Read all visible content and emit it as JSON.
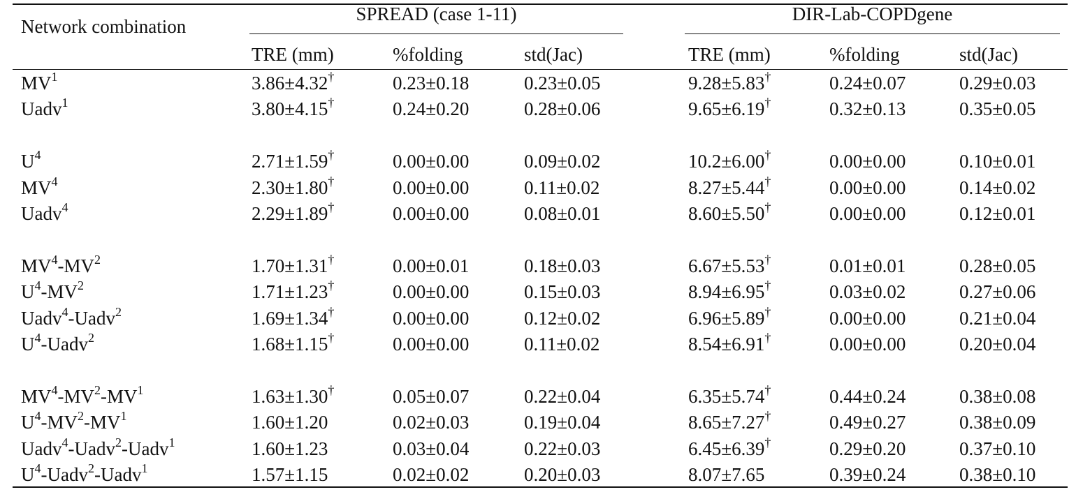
{
  "table": {
    "header": {
      "first": "Network combination",
      "groups": [
        "SPREAD (case 1-11)",
        "DIR-Lab-COPDgene"
      ],
      "columns": [
        "TRE (mm)",
        "%folding",
        "std(Jac)",
        "TRE (mm)",
        "%folding",
        "std(Jac)"
      ]
    },
    "groups": [
      [
        {
          "name": [
            "MV",
            "1"
          ],
          "cells": [
            [
              "3.86±4.32",
              "†"
            ],
            [
              "0.23±0.18"
            ],
            [
              "0.23±0.05"
            ],
            [
              "9.28±5.83",
              "†"
            ],
            [
              "0.24±0.07"
            ],
            [
              "0.29±0.03"
            ]
          ]
        },
        {
          "name": [
            "Uadv",
            "1"
          ],
          "cells": [
            [
              "3.80±4.15",
              "†"
            ],
            [
              "0.24±0.20"
            ],
            [
              "0.28±0.06"
            ],
            [
              "9.65±6.19",
              "†"
            ],
            [
              "0.32±0.13"
            ],
            [
              "0.35±0.05"
            ]
          ]
        }
      ],
      [
        {
          "name": [
            "U",
            "4"
          ],
          "cells": [
            [
              "2.71±1.59",
              "†"
            ],
            [
              "0.00±0.00"
            ],
            [
              "0.09±0.02"
            ],
            [
              "10.2±6.00",
              "†"
            ],
            [
              "0.00±0.00"
            ],
            [
              "0.10±0.01"
            ]
          ]
        },
        {
          "name": [
            "MV",
            "4"
          ],
          "cells": [
            [
              "2.30±1.80",
              "†"
            ],
            [
              "0.00±0.00"
            ],
            [
              "0.11±0.02"
            ],
            [
              "8.27±5.44",
              "†"
            ],
            [
              "0.00±0.00"
            ],
            [
              "0.14±0.02"
            ]
          ]
        },
        {
          "name": [
            "Uadv",
            "4"
          ],
          "cells": [
            [
              "2.29±1.89",
              "†"
            ],
            [
              "0.00±0.00"
            ],
            [
              "0.08±0.01"
            ],
            [
              "8.60±5.50",
              "†"
            ],
            [
              "0.00±0.00"
            ],
            [
              "0.12±0.01"
            ]
          ]
        }
      ],
      [
        {
          "name": [
            "MV",
            "4",
            "-MV",
            "2"
          ],
          "cells": [
            [
              "1.70±1.31",
              "†"
            ],
            [
              "0.00±0.01"
            ],
            [
              "0.18±0.03"
            ],
            [
              "6.67±5.53",
              "†"
            ],
            [
              "0.01±0.01"
            ],
            [
              "0.28±0.05"
            ]
          ]
        },
        {
          "name": [
            "U",
            "4",
            "-MV",
            "2"
          ],
          "cells": [
            [
              "1.71±1.23",
              "†"
            ],
            [
              "0.00±0.00"
            ],
            [
              "0.15±0.03"
            ],
            [
              "8.94±6.95",
              "†"
            ],
            [
              "0.03±0.02"
            ],
            [
              "0.27±0.06"
            ]
          ]
        },
        {
          "name": [
            "Uadv",
            "4",
            "-Uadv",
            "2"
          ],
          "cells": [
            [
              "1.69±1.34",
              "†"
            ],
            [
              "0.00±0.00"
            ],
            [
              "0.12±0.02"
            ],
            [
              "6.96±5.89",
              "†"
            ],
            [
              "0.00±0.00"
            ],
            [
              "0.21±0.04"
            ]
          ]
        },
        {
          "name": [
            "U",
            "4",
            "-Uadv",
            "2"
          ],
          "cells": [
            [
              "1.68±1.15",
              "†"
            ],
            [
              "0.00±0.00"
            ],
            [
              "0.11±0.02"
            ],
            [
              "8.54±6.91",
              "†"
            ],
            [
              "0.00±0.00"
            ],
            [
              "0.20±0.04"
            ]
          ]
        }
      ],
      [
        {
          "name": [
            "MV",
            "4",
            "-MV",
            "2",
            "-MV",
            "1"
          ],
          "cells": [
            [
              "1.63±1.30",
              "†"
            ],
            [
              "0.05±0.07"
            ],
            [
              "0.22±0.04"
            ],
            [
              "6.35±5.74",
              "†"
            ],
            [
              "0.44±0.24"
            ],
            [
              "0.38±0.08"
            ]
          ]
        },
        {
          "name": [
            "U",
            "4",
            "-MV",
            "2",
            "-MV",
            "1"
          ],
          "cells": [
            [
              "1.60±1.20"
            ],
            [
              "0.02±0.03"
            ],
            [
              "0.19±0.04"
            ],
            [
              "8.65±7.27",
              "†"
            ],
            [
              "0.49±0.27"
            ],
            [
              "0.38±0.09"
            ]
          ]
        },
        {
          "name": [
            "Uadv",
            "4",
            "-Uadv",
            "2",
            "-Uadv",
            "1"
          ],
          "cells": [
            [
              "1.60±1.23"
            ],
            [
              "0.03±0.04"
            ],
            [
              "0.22±0.03"
            ],
            [
              "6.45±6.39",
              "†"
            ],
            [
              "0.29±0.20"
            ],
            [
              "0.37±0.10"
            ]
          ]
        },
        {
          "name": [
            "U",
            "4",
            "-Uadv",
            "2",
            "-Uadv",
            "1"
          ],
          "cells": [
            [
              "1.57±1.15"
            ],
            [
              "0.02±0.02"
            ],
            [
              "0.20±0.03"
            ],
            [
              "8.07±7.65"
            ],
            [
              "0.39±0.24"
            ],
            [
              "0.38±0.10"
            ]
          ]
        }
      ]
    ]
  }
}
